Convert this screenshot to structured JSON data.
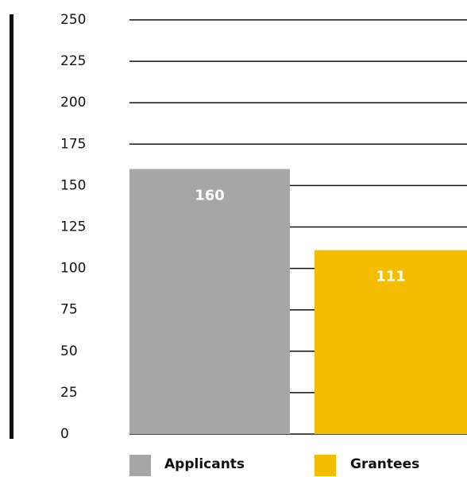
{
  "chart_data": {
    "type": "bar",
    "categories": [
      "Applicants",
      "Grantees"
    ],
    "values": [
      160,
      111
    ],
    "colors": [
      "#a6a6a6",
      "#f5bd00"
    ],
    "ylim": [
      0,
      250
    ],
    "yticks": [
      0,
      25,
      50,
      75,
      100,
      125,
      150,
      175,
      200,
      225,
      250
    ],
    "grid": true,
    "legend": "bottom"
  }
}
